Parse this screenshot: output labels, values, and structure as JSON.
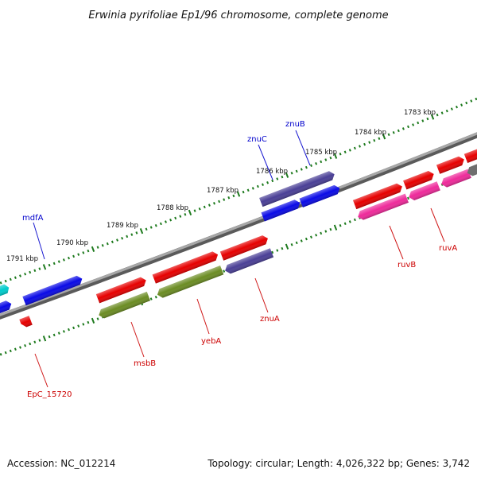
{
  "title": "Erwinia pyrifoliae Ep1/96 chromosome, complete genome",
  "accession": "Accession: NC_012214",
  "summary": "Topology: circular; Length: 4,026,322 bp; Genes: 3,742",
  "colors": {
    "backbone": "#8c8c8c",
    "tick": "#1d7a1d",
    "forward_label": "#0000cc",
    "reverse_label": "#cc0000"
  },
  "kbp_labels": [
    "1791 kbp",
    "1790 kbp",
    "1789 kbp",
    "1788 kbp",
    "1787 kbp",
    "1786 kbp",
    "1785 kbp",
    "1784 kbp",
    "1783 kbp"
  ],
  "gene_labels": {
    "mdfA": "mdfA",
    "znuC": "znuC",
    "znuB": "znuB",
    "msbB": "msbB",
    "yebA": "yebA",
    "znuA": "znuA",
    "ruvB": "ruvB",
    "ruvA": "ruvA",
    "EpC_15720": "EpC_15720"
  }
}
